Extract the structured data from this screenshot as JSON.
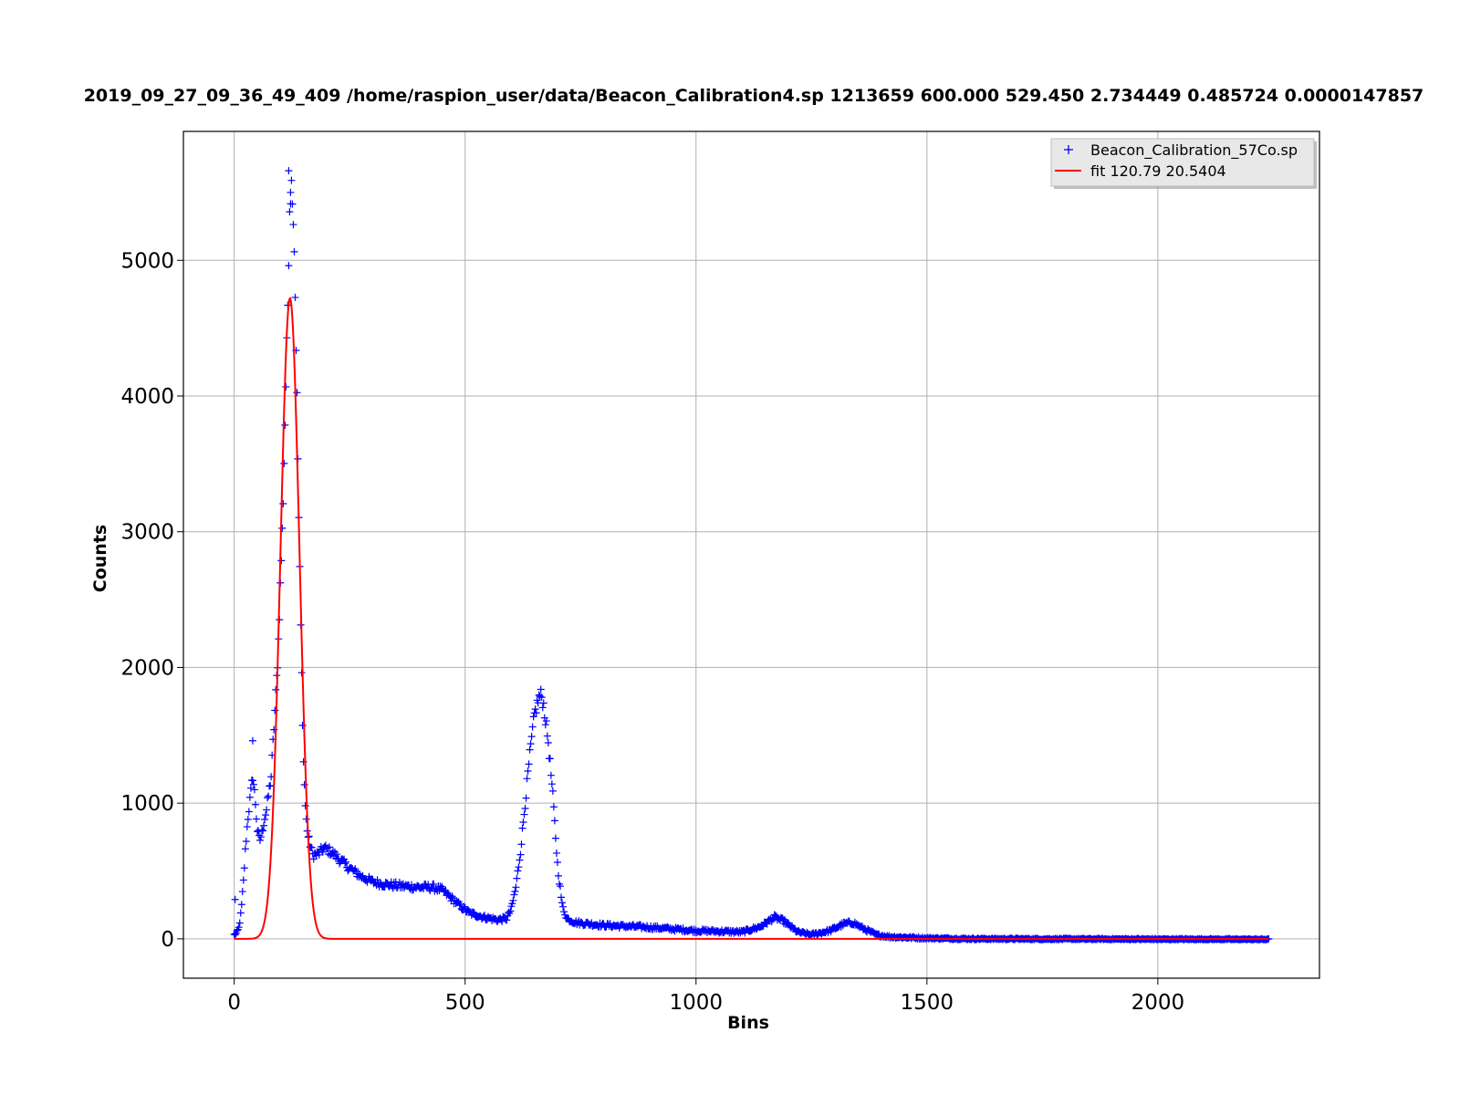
{
  "chart_data": {
    "type": "scatter",
    "title": "2019_09_27_09_36_49_409 /home/raspion_user/data/Beacon_Calibration4.sp 1213659  600.000  529.450 2.734449 0.485724  0.0000147857",
    "xlabel": "Bins",
    "ylabel": "Counts",
    "xlim": [
      -110,
      2350
    ],
    "ylim": [
      -290,
      5950
    ],
    "xticks": [
      0,
      500,
      1000,
      1500,
      2000
    ],
    "yticks": [
      0,
      1000,
      2000,
      3000,
      4000,
      5000
    ],
    "grid": true,
    "legend_position": "top-right",
    "series": [
      {
        "name": "Beacon_Calibration_57Co.sp",
        "kind": "scatter",
        "marker": "+",
        "color": "#0000ff",
        "x_range": [
          0,
          2240
        ],
        "profile": [
          [
            0,
            30
          ],
          [
            5,
            40
          ],
          [
            10,
            80
          ],
          [
            15,
            200
          ],
          [
            20,
            420
          ],
          [
            25,
            700
          ],
          [
            30,
            900
          ],
          [
            35,
            1050
          ],
          [
            40,
            1200
          ],
          [
            45,
            1050
          ],
          [
            50,
            800
          ],
          [
            55,
            720
          ],
          [
            60,
            780
          ],
          [
            65,
            880
          ],
          [
            70,
            950
          ],
          [
            75,
            1080
          ],
          [
            80,
            1200
          ],
          [
            85,
            1500
          ],
          [
            90,
            1800
          ],
          [
            95,
            2100
          ],
          [
            100,
            2600
          ],
          [
            105,
            3100
          ],
          [
            110,
            3800
          ],
          [
            115,
            4500
          ],
          [
            120,
            5400
          ],
          [
            125,
            5600
          ],
          [
            130,
            5100
          ],
          [
            135,
            4200
          ],
          [
            140,
            3100
          ],
          [
            145,
            2100
          ],
          [
            150,
            1300
          ],
          [
            155,
            900
          ],
          [
            160,
            750
          ],
          [
            170,
            620
          ],
          [
            180,
            620
          ],
          [
            195,
            670
          ],
          [
            210,
            640
          ],
          [
            230,
            580
          ],
          [
            250,
            520
          ],
          [
            275,
            460
          ],
          [
            300,
            420
          ],
          [
            330,
            400
          ],
          [
            360,
            390
          ],
          [
            400,
            380
          ],
          [
            430,
            380
          ],
          [
            450,
            360
          ],
          [
            470,
            300
          ],
          [
            490,
            240
          ],
          [
            510,
            190
          ],
          [
            540,
            160
          ],
          [
            570,
            140
          ],
          [
            590,
            150
          ],
          [
            600,
            220
          ],
          [
            610,
            380
          ],
          [
            620,
            650
          ],
          [
            630,
            1000
          ],
          [
            640,
            1350
          ],
          [
            650,
            1650
          ],
          [
            660,
            1780
          ],
          [
            665,
            1800
          ],
          [
            670,
            1720
          ],
          [
            680,
            1450
          ],
          [
            690,
            1050
          ],
          [
            700,
            550
          ],
          [
            710,
            250
          ],
          [
            720,
            150
          ],
          [
            740,
            120
          ],
          [
            800,
            100
          ],
          [
            900,
            85
          ],
          [
            1000,
            60
          ],
          [
            1050,
            55
          ],
          [
            1100,
            50
          ],
          [
            1140,
            90
          ],
          [
            1170,
            160
          ],
          [
            1190,
            130
          ],
          [
            1220,
            50
          ],
          [
            1250,
            30
          ],
          [
            1290,
            60
          ],
          [
            1320,
            110
          ],
          [
            1340,
            120
          ],
          [
            1360,
            80
          ],
          [
            1390,
            30
          ],
          [
            1420,
            15
          ],
          [
            1500,
            5
          ],
          [
            1600,
            0
          ],
          [
            2240,
            -5
          ]
        ],
        "spikes": [
          [
            2,
            290
          ],
          [
            40,
            1460
          ],
          [
            118,
            5660
          ],
          [
            122,
            5500
          ]
        ]
      },
      {
        "name": "fit 120.79 20.5404",
        "kind": "line",
        "model": "gaussian",
        "mean": 120.79,
        "sigma": 20.5404,
        "amplitude": 4720,
        "x_range": [
          0,
          2240
        ],
        "color": "#ff0000"
      }
    ]
  }
}
